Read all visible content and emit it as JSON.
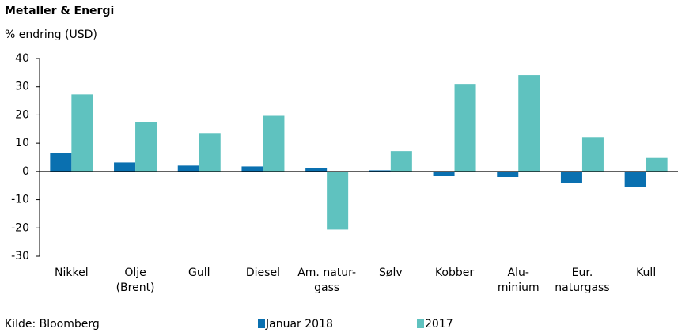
{
  "chart_data": {
    "type": "bar",
    "title": "Metaller & Energi",
    "subtitle": "% endring (USD)",
    "source": "Kilde: Bloomberg",
    "categories": [
      [
        "Nikkel"
      ],
      [
        "Olje",
        "(Brent)"
      ],
      [
        "Gull"
      ],
      [
        "Diesel"
      ],
      [
        "Am. natur-",
        "gass"
      ],
      [
        "Sølv"
      ],
      [
        "Kobber"
      ],
      [
        "Alu-",
        "minium"
      ],
      [
        "Eur.",
        "naturgass"
      ],
      [
        "Kull"
      ]
    ],
    "series": [
      {
        "name": "Januar 2018",
        "color": "#0a70b0",
        "values": [
          6.5,
          3.2,
          2.1,
          1.8,
          1.2,
          0.4,
          -1.6,
          -2.0,
          -4.0,
          -5.5
        ]
      },
      {
        "name": "2017",
        "color": "#5fc2bf",
        "values": [
          27.3,
          17.6,
          13.6,
          19.7,
          -20.6,
          7.2,
          31.0,
          34.1,
          12.2,
          4.8
        ]
      }
    ],
    "ylim": [
      -30,
      40
    ],
    "yticks": [
      -30,
      -20,
      -10,
      0,
      10,
      20,
      30,
      40
    ],
    "grid": false
  }
}
